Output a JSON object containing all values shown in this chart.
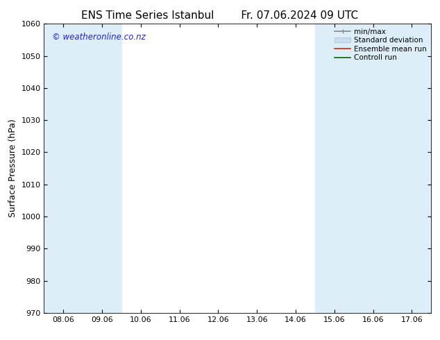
{
  "title": "ENS Time Series Istanbul",
  "title2": "Fr. 07.06.2024 09 UTC",
  "ylabel": "Surface Pressure (hPa)",
  "ylim": [
    970,
    1060
  ],
  "yticks": [
    970,
    980,
    990,
    1000,
    1010,
    1020,
    1030,
    1040,
    1050,
    1060
  ],
  "xtick_labels": [
    "08.06",
    "09.06",
    "10.06",
    "11.06",
    "12.06",
    "13.06",
    "14.06",
    "15.06",
    "16.06",
    "17.06"
  ],
  "xtick_positions": [
    0,
    1,
    2,
    3,
    4,
    5,
    6,
    7,
    8,
    9
  ],
  "xlim": [
    -0.5,
    9.5
  ],
  "shaded_bands": [
    {
      "x_start": -0.5,
      "x_end": 0.0
    },
    {
      "x_start": 0.5,
      "x_end": 1.0
    },
    {
      "x_start": 6.5,
      "x_end": 7.0
    },
    {
      "x_start": 7.5,
      "x_end": 8.0
    },
    {
      "x_start": 9.0,
      "x_end": 9.5
    }
  ],
  "shaded_color": "#ddeef8",
  "background_color": "#ffffff",
  "watermark_text": "© weatheronline.co.nz",
  "watermark_color": "#2222cc",
  "legend_labels": [
    "min/max",
    "Standard deviation",
    "Ensemble mean run",
    "Controll run"
  ],
  "legend_line_colors": [
    "#aaaaaa",
    "#bbcce0",
    "#ff2200",
    "#007700"
  ],
  "font_family": "DejaVu Sans",
  "tick_font_size": 8,
  "title_font_size": 11,
  "label_font_size": 9,
  "legend_font_size": 7.5
}
